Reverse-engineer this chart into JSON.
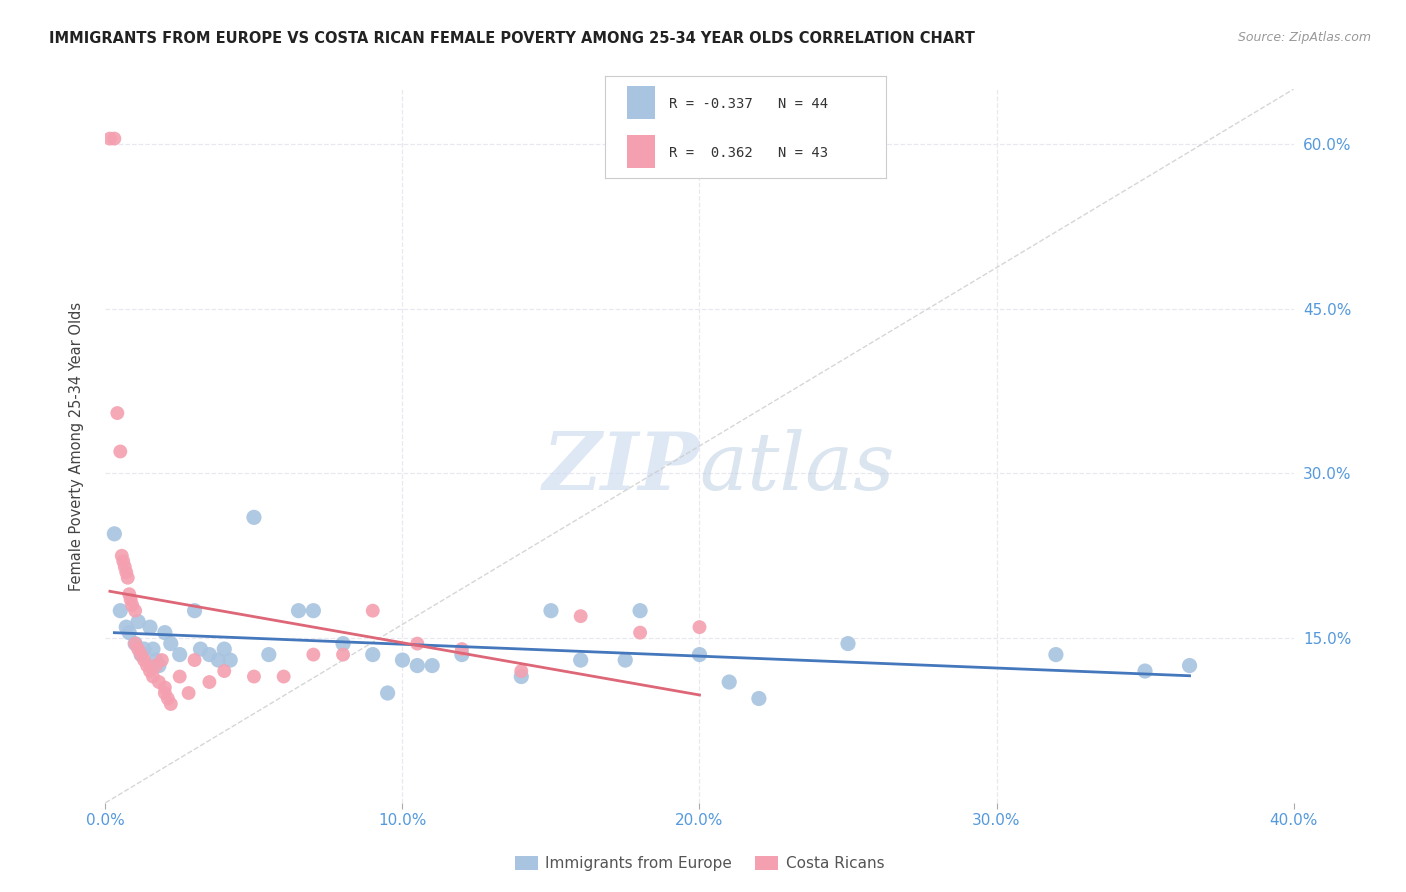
{
  "title": "IMMIGRANTS FROM EUROPE VS COSTA RICAN FEMALE POVERTY AMONG 25-34 YEAR OLDS CORRELATION CHART",
  "source": "Source: ZipAtlas.com",
  "ylabel_label": "Female Poverty Among 25-34 Year Olds",
  "xmin": 0.0,
  "xmax": 40.0,
  "ymin": 0.0,
  "ymax": 65.0,
  "legend_r1_text": "R = -0.337   N = 44",
  "legend_r2_text": "R =  0.362   N = 43",
  "legend_label1": "Immigrants from Europe",
  "legend_label2": "Costa Ricans",
  "blue_color": "#a8c4e0",
  "pink_color": "#f4a0b0",
  "blue_line_color": "#4477bb",
  "pink_line_color": "#dd6677",
  "blue_scatter": [
    [
      0.3,
      24.5
    ],
    [
      0.5,
      17.5
    ],
    [
      0.7,
      16.0
    ],
    [
      0.8,
      15.5
    ],
    [
      1.0,
      14.5
    ],
    [
      1.1,
      16.5
    ],
    [
      1.2,
      13.5
    ],
    [
      1.3,
      14.0
    ],
    [
      1.5,
      16.0
    ],
    [
      1.6,
      14.0
    ],
    [
      1.7,
      13.0
    ],
    [
      1.8,
      12.5
    ],
    [
      2.0,
      15.5
    ],
    [
      2.2,
      14.5
    ],
    [
      2.5,
      13.5
    ],
    [
      3.0,
      17.5
    ],
    [
      3.2,
      14.0
    ],
    [
      3.5,
      13.5
    ],
    [
      3.8,
      13.0
    ],
    [
      4.0,
      14.0
    ],
    [
      4.2,
      13.0
    ],
    [
      5.0,
      26.0
    ],
    [
      5.5,
      13.5
    ],
    [
      6.5,
      17.5
    ],
    [
      7.0,
      17.5
    ],
    [
      8.0,
      14.5
    ],
    [
      9.0,
      13.5
    ],
    [
      9.5,
      10.0
    ],
    [
      10.0,
      13.0
    ],
    [
      10.5,
      12.5
    ],
    [
      11.0,
      12.5
    ],
    [
      12.0,
      13.5
    ],
    [
      14.0,
      11.5
    ],
    [
      15.0,
      17.5
    ],
    [
      16.0,
      13.0
    ],
    [
      17.5,
      13.0
    ],
    [
      18.0,
      17.5
    ],
    [
      20.0,
      13.5
    ],
    [
      21.0,
      11.0
    ],
    [
      22.0,
      9.5
    ],
    [
      25.0,
      14.5
    ],
    [
      32.0,
      13.5
    ],
    [
      35.0,
      12.0
    ],
    [
      36.5,
      12.5
    ]
  ],
  "pink_scatter": [
    [
      0.15,
      60.5
    ],
    [
      0.3,
      60.5
    ],
    [
      0.4,
      35.5
    ],
    [
      0.5,
      32.0
    ],
    [
      0.55,
      22.5
    ],
    [
      0.6,
      22.0
    ],
    [
      0.65,
      21.5
    ],
    [
      0.7,
      21.0
    ],
    [
      0.75,
      20.5
    ],
    [
      0.8,
      19.0
    ],
    [
      0.85,
      18.5
    ],
    [
      0.9,
      18.0
    ],
    [
      1.0,
      17.5
    ],
    [
      1.0,
      14.5
    ],
    [
      1.1,
      14.0
    ],
    [
      1.2,
      13.5
    ],
    [
      1.3,
      13.0
    ],
    [
      1.4,
      12.5
    ],
    [
      1.5,
      12.0
    ],
    [
      1.6,
      11.5
    ],
    [
      1.7,
      12.5
    ],
    [
      1.8,
      11.0
    ],
    [
      1.9,
      13.0
    ],
    [
      2.0,
      10.5
    ],
    [
      2.0,
      10.0
    ],
    [
      2.1,
      9.5
    ],
    [
      2.2,
      9.0
    ],
    [
      2.5,
      11.5
    ],
    [
      2.8,
      10.0
    ],
    [
      3.0,
      13.0
    ],
    [
      3.5,
      11.0
    ],
    [
      4.0,
      12.0
    ],
    [
      5.0,
      11.5
    ],
    [
      6.0,
      11.5
    ],
    [
      7.0,
      13.5
    ],
    [
      8.0,
      13.5
    ],
    [
      9.0,
      17.5
    ],
    [
      10.5,
      14.5
    ],
    [
      12.0,
      14.0
    ],
    [
      14.0,
      12.0
    ],
    [
      16.0,
      17.0
    ],
    [
      18.0,
      15.5
    ],
    [
      20.0,
      16.0
    ]
  ],
  "watermark_zip": "ZIP",
  "watermark_atlas": "atlas",
  "background_color": "#ffffff",
  "grid_color": "#e8e8f0"
}
